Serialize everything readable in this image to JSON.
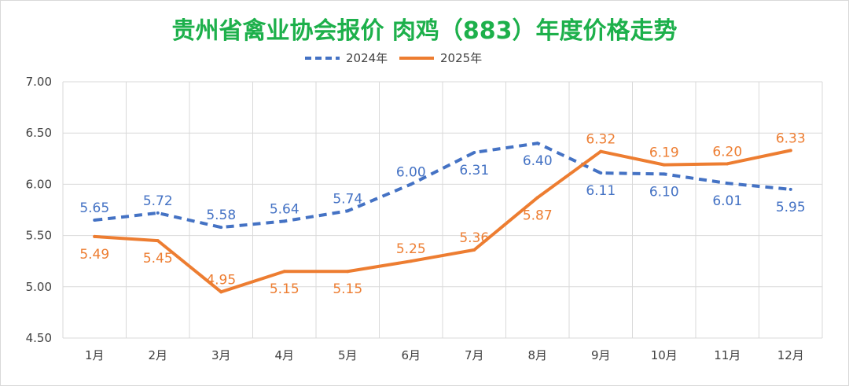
{
  "chart_data": {
    "type": "line",
    "title": "贵州省禽业协会报价 肉鸡（883）年度价格走势",
    "categories": [
      "1月",
      "2月",
      "3月",
      "4月",
      "5月",
      "6月",
      "7月",
      "8月",
      "9月",
      "10月",
      "11月",
      "12月"
    ],
    "ylim": [
      4.5,
      7.0
    ],
    "yticks": [
      "4.50",
      "5.00",
      "5.50",
      "6.00",
      "6.50",
      "7.00"
    ],
    "grid": true,
    "legend": "top-center",
    "series": [
      {
        "name": "2024年",
        "color": "#4472c4",
        "dashed": true,
        "values": [
          5.65,
          5.72,
          5.58,
          5.64,
          5.74,
          6.0,
          6.31,
          6.4,
          6.11,
          6.1,
          6.01,
          5.95
        ],
        "labels": [
          "5.65",
          "5.72",
          "5.58",
          "5.64",
          "5.74",
          "6.00",
          "6.31",
          "6.40",
          "6.11",
          "6.10",
          "6.01",
          "5.95"
        ]
      },
      {
        "name": "2025年",
        "color": "#ed7d31",
        "dashed": false,
        "values": [
          5.49,
          5.45,
          4.95,
          5.15,
          5.15,
          5.25,
          5.36,
          5.87,
          6.32,
          6.19,
          6.2,
          6.33
        ],
        "labels": [
          "5.49",
          "5.45",
          "4.95",
          "5.15",
          "5.15",
          "5.25",
          "5.36",
          "5.87",
          "6.32",
          "6.19",
          "6.20",
          "6.33"
        ]
      }
    ]
  }
}
